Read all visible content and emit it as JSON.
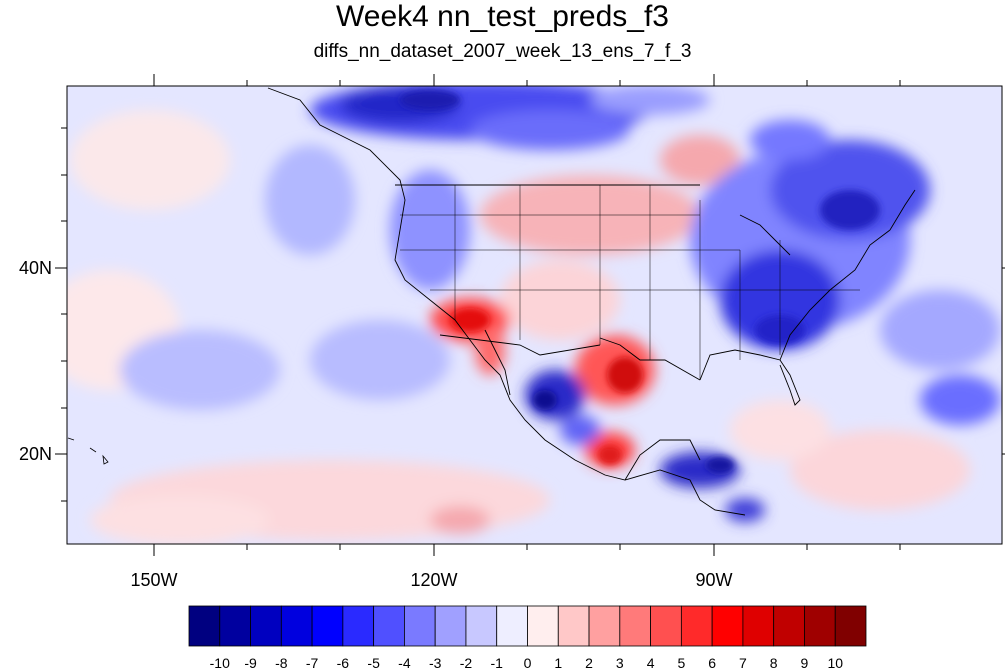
{
  "title": "Week4 nn_test_preds_f3",
  "subtitle": "diffs_nn_dataset_2007_week_13_ens_7_f_3",
  "x_ticks": [
    "150W",
    "120W",
    "90W"
  ],
  "y_ticks": [
    "40N",
    "20N"
  ],
  "colorbar": {
    "colors": [
      "#000080",
      "#00009f",
      "#0000c0",
      "#0000df",
      "#0000ff",
      "#2a2aff",
      "#5050ff",
      "#7a7aff",
      "#a0a0ff",
      "#c8c8ff",
      "#eeeeff",
      "#ffeeee",
      "#ffc8c8",
      "#ffa0a0",
      "#ff7a7a",
      "#ff5050",
      "#ff2a2a",
      "#ff0000",
      "#df0000",
      "#c00000",
      "#9f0000",
      "#800000"
    ],
    "labels": [
      "-10",
      "-9",
      "-8",
      "-7",
      "-6",
      "-5",
      "-4",
      "-3",
      "-2",
      "-1",
      "0",
      "1",
      "2",
      "3",
      "4",
      "5",
      "6",
      "7",
      "8",
      "9",
      "10"
    ]
  }
}
